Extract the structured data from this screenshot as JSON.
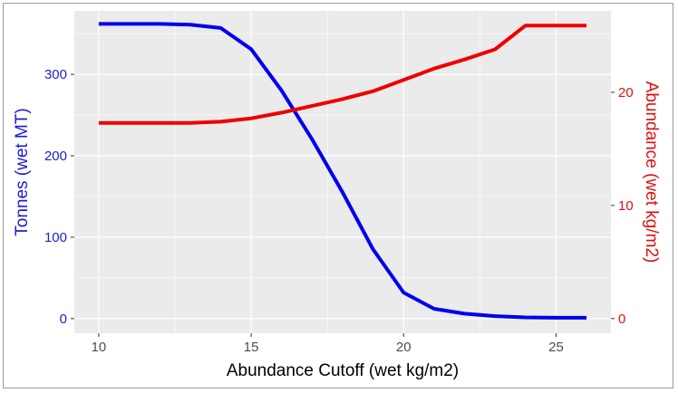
{
  "chart_data": {
    "type": "line",
    "title": "",
    "xlabel": "Abundance Cutoff (wet kg/m2)",
    "ylabel_left": "Tonnes (wet MT)",
    "ylabel_right": "Abundance (wet kg/m2)",
    "xlim": [
      9.2,
      26.8
    ],
    "ylim_left": [
      -18,
      378
    ],
    "ylim_right": [
      -1.3,
      27.2
    ],
    "x_ticks": [
      "10",
      "15",
      "20",
      "25"
    ],
    "y_left_ticks": [
      "0",
      "100",
      "200",
      "300"
    ],
    "y_right_ticks": [
      "0",
      "10",
      "20"
    ],
    "grid": true,
    "legend": "none",
    "series": [
      {
        "axis": "left",
        "color": "#0000ee",
        "x": [
          10,
          11,
          12,
          13,
          14,
          15,
          16,
          17,
          18,
          19,
          20,
          21,
          22,
          23,
          24,
          25,
          26
        ],
        "values": [
          362,
          362,
          362,
          361,
          357,
          331,
          280,
          220,
          155,
          85,
          32,
          12,
          6,
          3,
          1.5,
          1,
          1
        ]
      },
      {
        "axis": "right",
        "color": "#ee0000",
        "x": [
          10,
          11,
          12,
          13,
          14,
          15,
          16,
          17,
          18,
          19,
          20,
          21,
          22,
          23,
          24,
          25,
          26
        ],
        "values": [
          17.3,
          17.3,
          17.3,
          17.3,
          17.4,
          17.7,
          18.2,
          18.8,
          19.4,
          20.1,
          21.1,
          22.1,
          22.9,
          23.8,
          25.9,
          25.9,
          25.9
        ]
      }
    ]
  }
}
